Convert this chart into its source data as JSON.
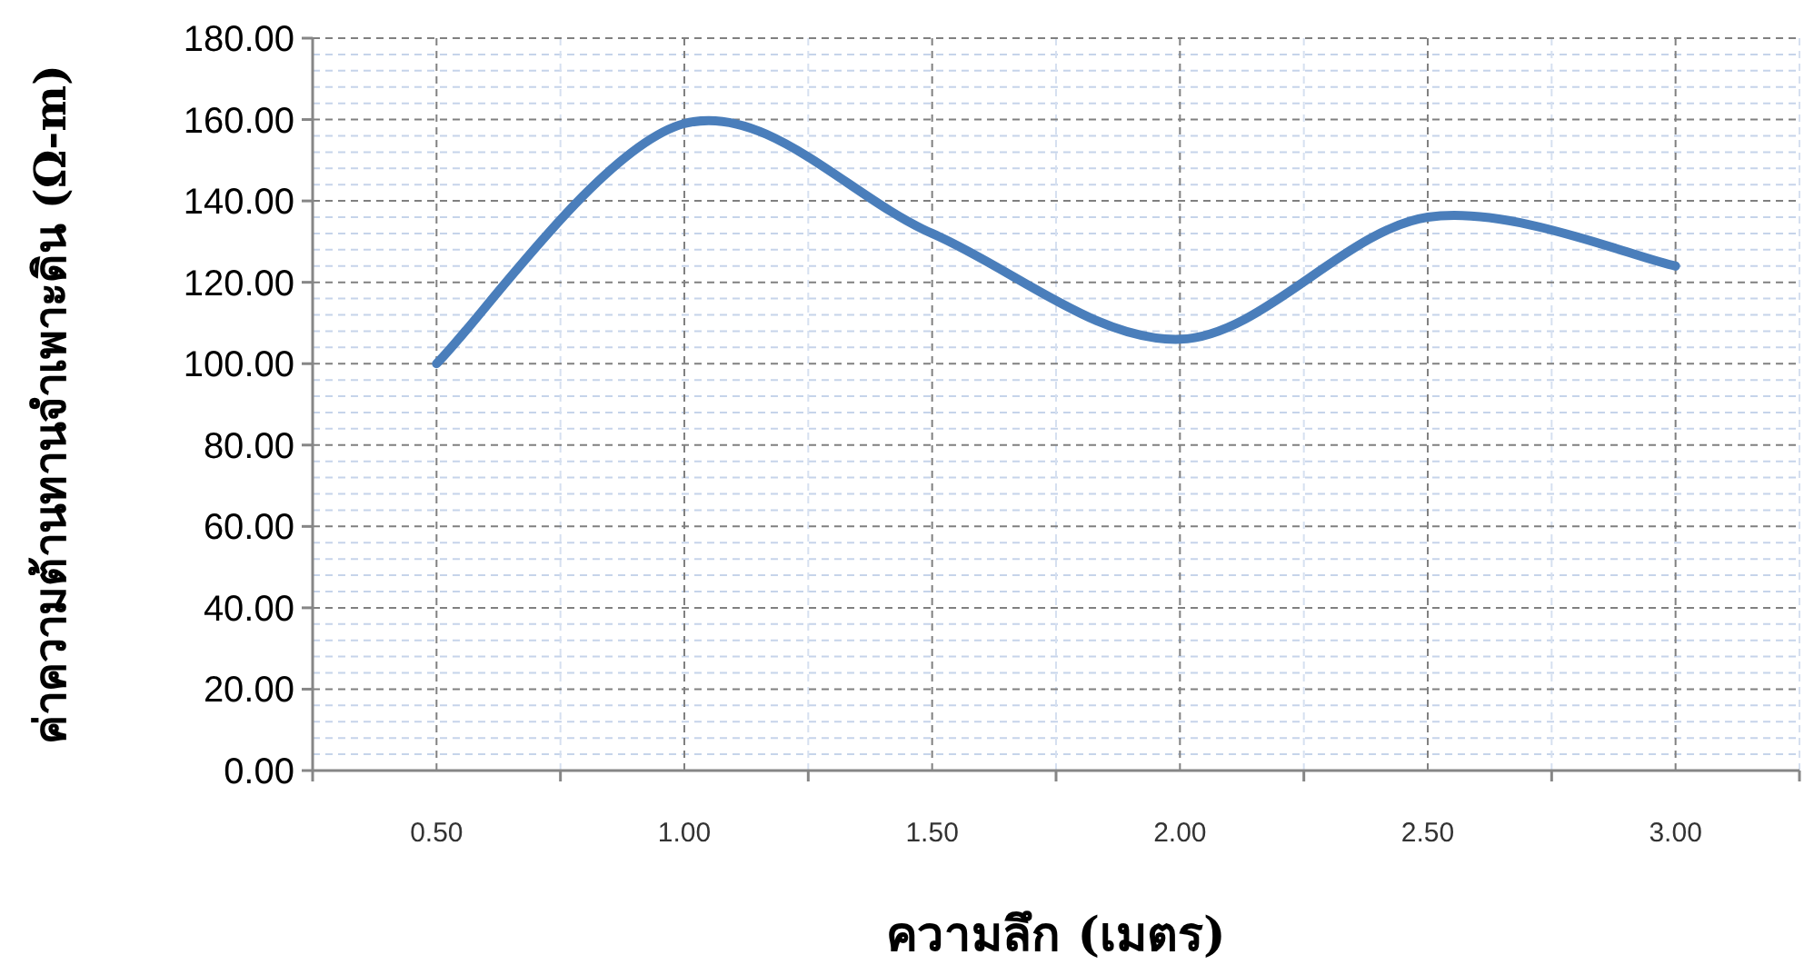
{
  "chart_data": {
    "type": "line",
    "xlabel": "ความลึก (เมตร)",
    "ylabel": "ค่าความต้านทานจำเพาะดิน (Ω-m)",
    "categories": [
      "0.50",
      "1.00",
      "1.50",
      "2.00",
      "2.50",
      "3.00"
    ],
    "values": [
      100,
      159,
      132,
      106,
      136,
      124
    ],
    "color": "#4a7ebb",
    "ylim": [
      0,
      180
    ],
    "yticks": [
      {
        "value": 0,
        "label": "0.00"
      },
      {
        "value": 20,
        "label": "20.00"
      },
      {
        "value": 40,
        "label": "40.00"
      },
      {
        "value": 60,
        "label": "60.00"
      },
      {
        "value": 80,
        "label": "80.00"
      },
      {
        "value": 100,
        "label": "100.00"
      },
      {
        "value": 120,
        "label": "120.00"
      },
      {
        "value": 140,
        "label": "140.00"
      },
      {
        "value": 160,
        "label": "160.00"
      },
      {
        "value": 180,
        "label": "180.00"
      }
    ],
    "grid": true
  }
}
